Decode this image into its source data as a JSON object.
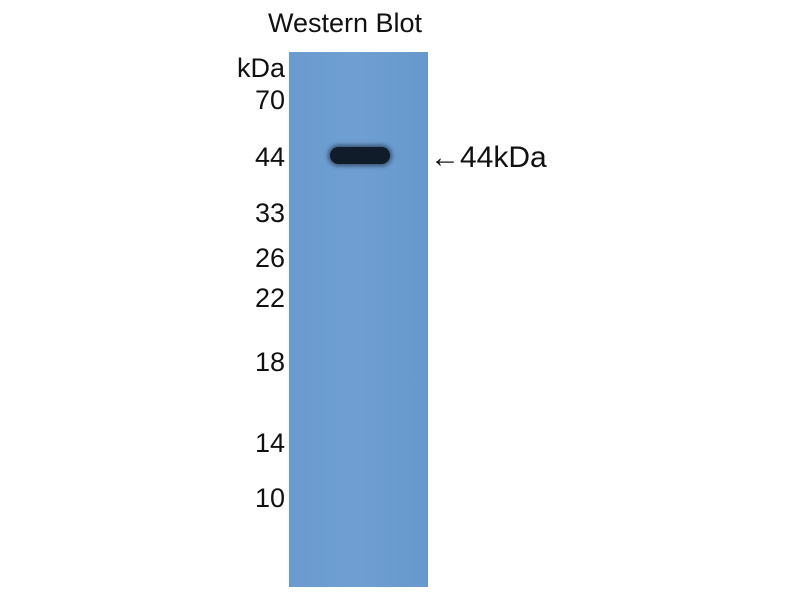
{
  "title": "Western Blot",
  "unit_label": "kDa",
  "markers": [
    "70",
    "44",
    "33",
    "26",
    "22",
    "18",
    "14",
    "10"
  ],
  "band_label": "44kDa",
  "arrow_icon": "left-arrow",
  "colors": {
    "membrane": "#6a9bd0",
    "band": "#111c2a"
  }
}
